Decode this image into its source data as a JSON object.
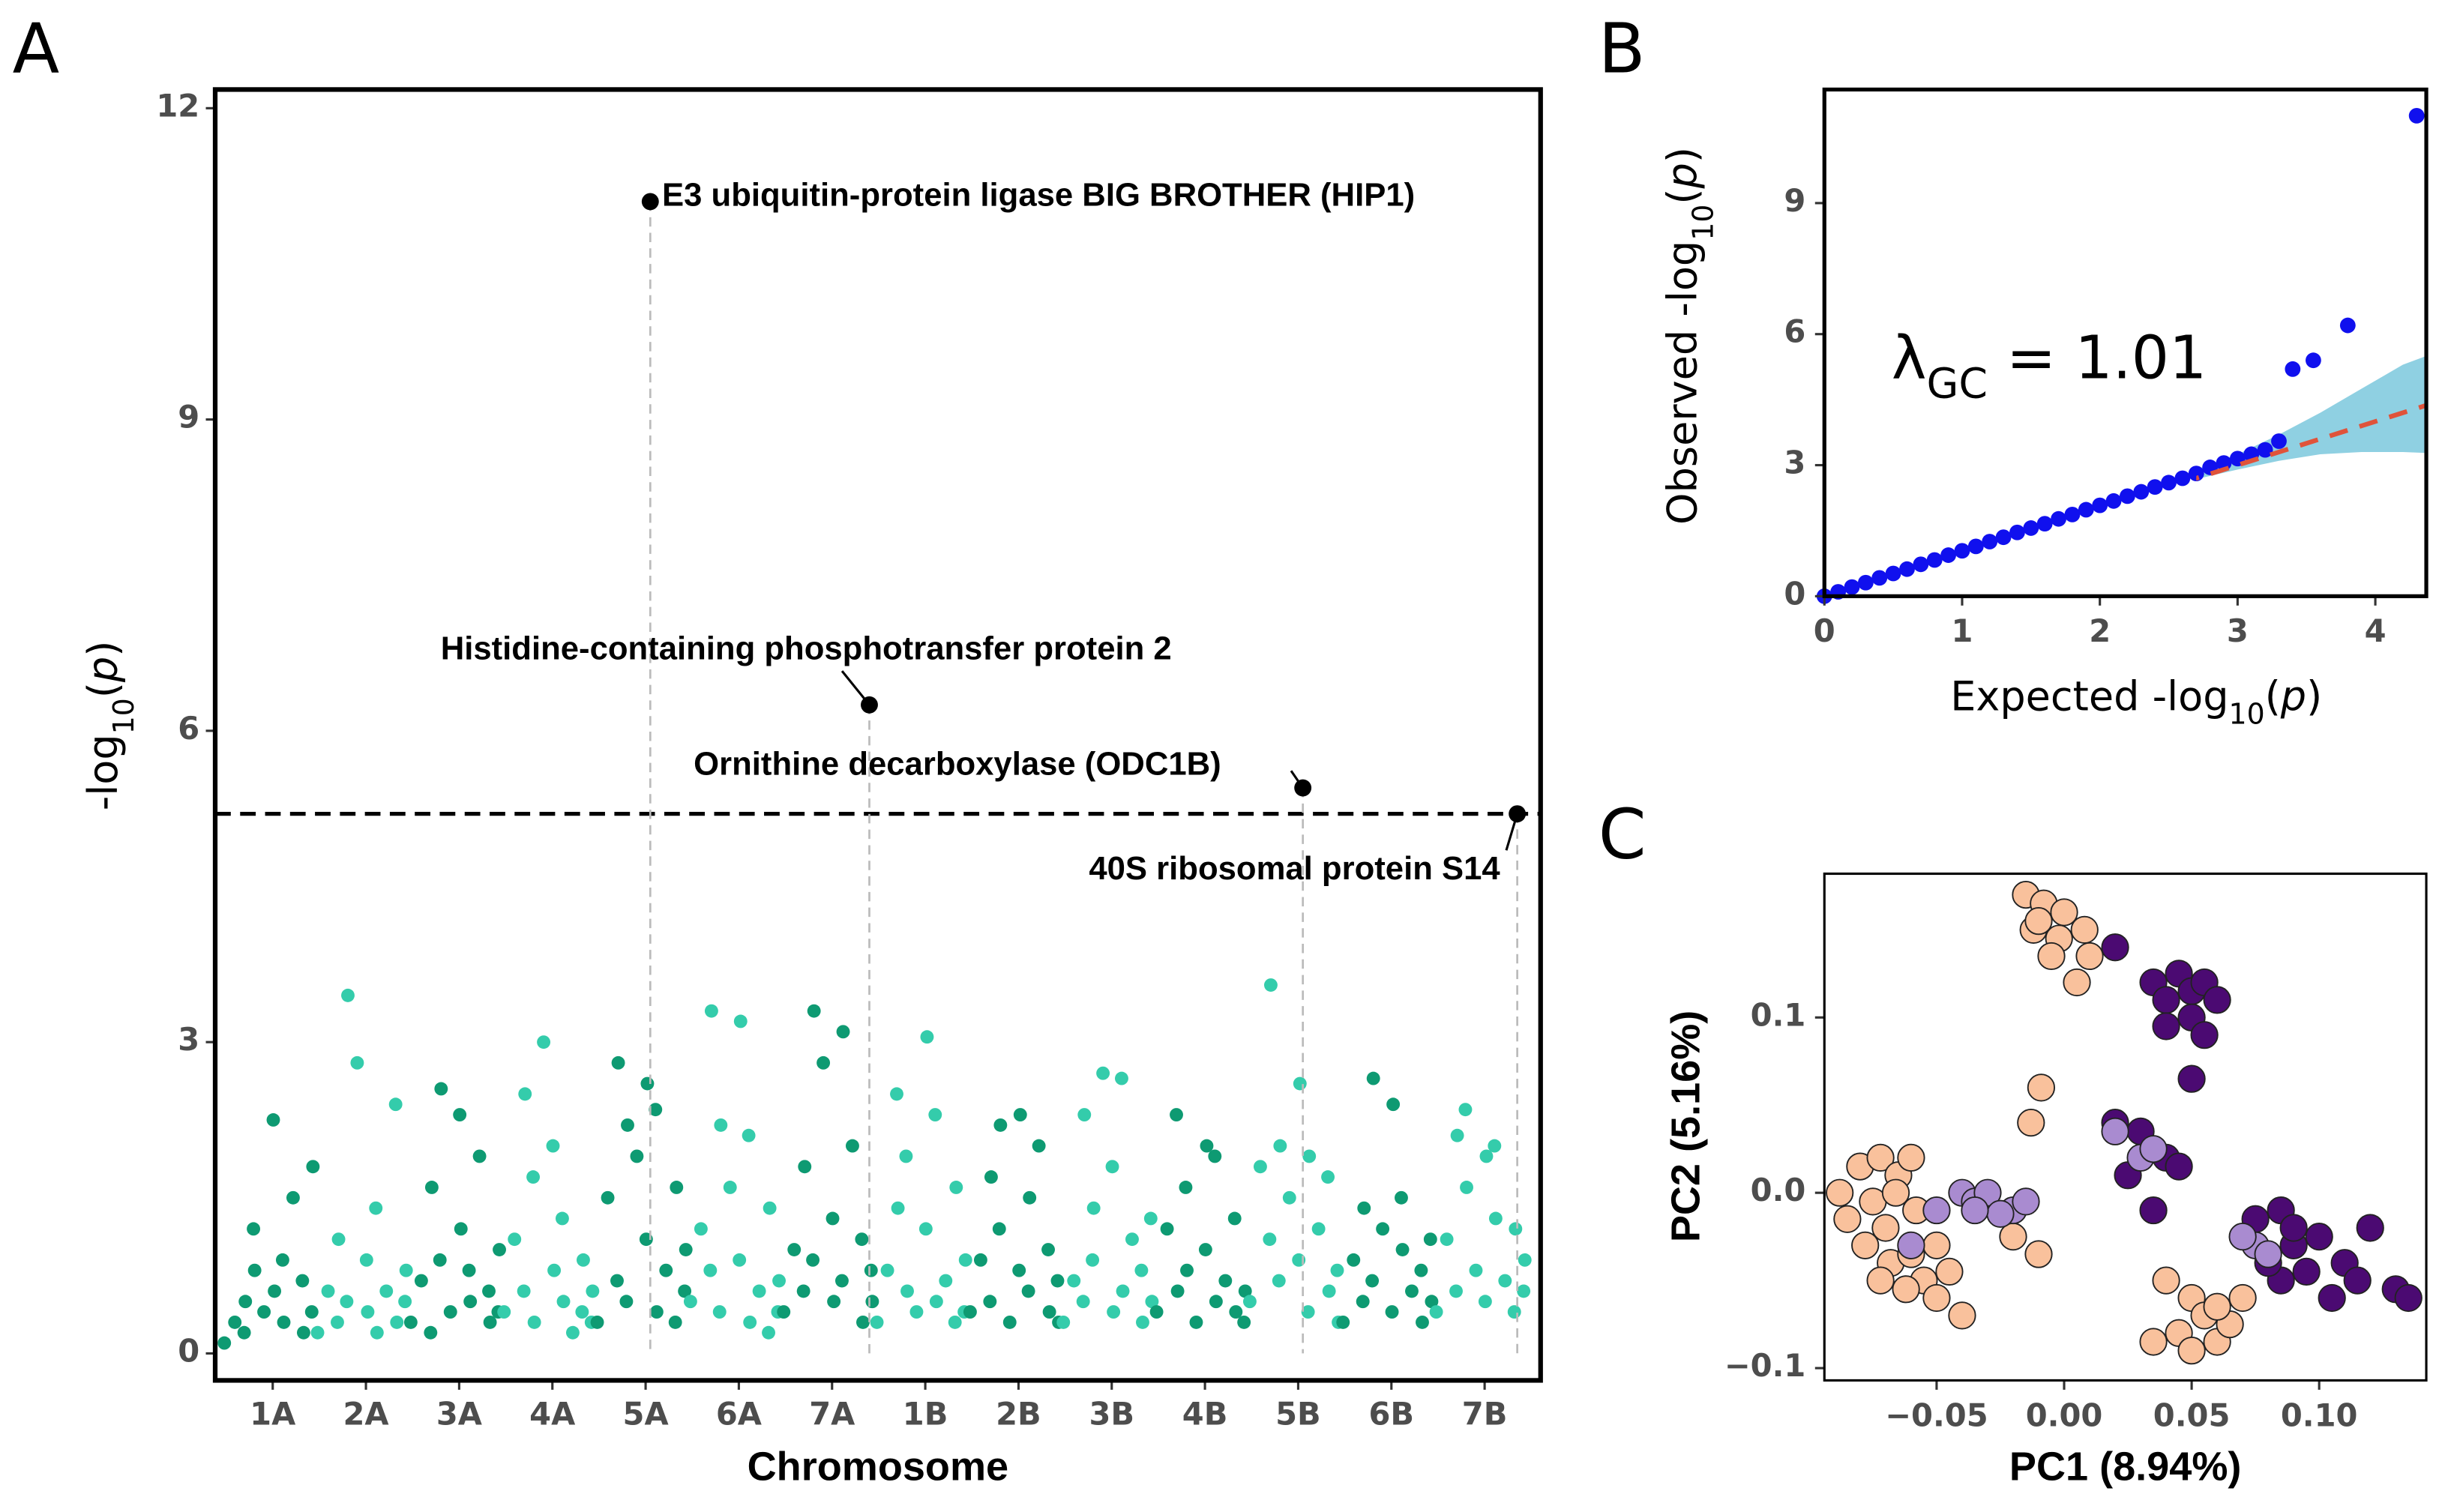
{
  "chart_data": [
    {
      "type": "manhattan",
      "panel": "A",
      "x_label": "Chromosome",
      "y_label": [
        {
          "t": "-log"
        },
        {
          "t": "10",
          "sub": true
        },
        {
          "t": "("
        },
        {
          "t": "p",
          "italic": true
        },
        {
          "t": ")"
        }
      ],
      "categories": [
        "1A",
        "2A",
        "3A",
        "4A",
        "5A",
        "6A",
        "7A",
        "1B",
        "2B",
        "3B",
        "4B",
        "5B",
        "6B",
        "7B"
      ],
      "colors": [
        "#0e9a72",
        "#34ccab"
      ],
      "points": [
        [
          0.1,
          0.3,
          0.5,
          0.2,
          0.8,
          1.2,
          0.4,
          0.6,
          2.25,
          0.3,
          0.9,
          1.5,
          0.2,
          0.7,
          1.8,
          0.4
        ],
        [
          0.2,
          0.6,
          1.1,
          0.3,
          3.45,
          0.5,
          2.8,
          0.4,
          0.9,
          0.2,
          1.4,
          0.6,
          0.3,
          2.4,
          0.8,
          0.5
        ],
        [
          0.3,
          0.7,
          1.6,
          0.2,
          2.55,
          0.9,
          0.4,
          1.2,
          2.3,
          0.5,
          0.8,
          1.9,
          0.3,
          0.6,
          1.0,
          0.4
        ],
        [
          0.4,
          1.1,
          2.5,
          0.6,
          0.3,
          1.7,
          3.0,
          0.8,
          2.0,
          0.5,
          1.3,
          0.2,
          0.9,
          0.4,
          0.6,
          0.3
        ],
        [
          0.3,
          1.5,
          2.8,
          0.7,
          2.2,
          0.5,
          1.9,
          2.6,
          1.1,
          0.4,
          2.35,
          0.8,
          1.6,
          0.3,
          1.0,
          0.6
        ],
        [
          0.5,
          1.2,
          3.3,
          0.8,
          2.2,
          0.4,
          1.6,
          3.2,
          0.9,
          0.3,
          2.1,
          0.6,
          1.4,
          0.2,
          0.7,
          0.4
        ],
        [
          0.4,
          1.0,
          1.8,
          0.6,
          3.3,
          0.9,
          2.8,
          0.5,
          1.3,
          3.1,
          0.7,
          2.0,
          0.3,
          1.1,
          0.5,
          0.8
        ],
        [
          0.3,
          0.8,
          1.4,
          2.5,
          0.6,
          1.9,
          0.4,
          3.05,
          1.2,
          0.5,
          2.3,
          0.7,
          1.6,
          0.3,
          0.9,
          0.4
        ],
        [
          0.4,
          0.9,
          1.7,
          0.5,
          2.2,
          1.2,
          0.3,
          2.3,
          0.8,
          1.5,
          0.6,
          2.0,
          0.4,
          1.0,
          0.3,
          0.7
        ],
        [
          0.3,
          0.7,
          2.3,
          0.5,
          1.4,
          0.9,
          2.7,
          0.4,
          1.8,
          0.6,
          2.65,
          1.1,
          0.3,
          0.8,
          0.5,
          1.3
        ],
        [
          0.4,
          1.2,
          0.6,
          2.3,
          0.8,
          1.6,
          0.3,
          2.0,
          1.0,
          0.5,
          1.9,
          0.7,
          0.4,
          1.3,
          0.6,
          0.3
        ],
        [
          0.5,
          1.8,
          3.55,
          1.1,
          2.0,
          0.7,
          1.5,
          2.6,
          0.9,
          1.9,
          0.4,
          1.2,
          0.6,
          1.7,
          0.3,
          0.8
        ],
        [
          0.3,
          0.9,
          1.4,
          0.5,
          2.65,
          0.7,
          1.2,
          2.4,
          0.4,
          1.0,
          1.5,
          0.6,
          0.3,
          0.8,
          0.5,
          1.1
        ],
        [
          0.4,
          1.1,
          2.1,
          0.6,
          1.6,
          2.35,
          0.8,
          1.9,
          0.5,
          1.3,
          2.0,
          0.7,
          1.2,
          0.4,
          0.9,
          0.6
        ]
      ],
      "highlights": [
        {
          "category": "5A",
          "value": 11.1,
          "label": "E3 ubiquitin-protein ligase BIG BROTHER (HIP1)"
        },
        {
          "category": "7A",
          "value": 6.25,
          "label": "Histidine-containing phosphotransfer protein 2"
        },
        {
          "category": "5B",
          "value": 5.45,
          "label": "Ornithine decarboxylase (ODC1B)"
        },
        {
          "category": "7B",
          "value": 5.2,
          "label": "40S ribosomal protein S14"
        }
      ],
      "threshold": 5.2,
      "ylim": [
        -0.26,
        12.18
      ],
      "yticks": [
        0,
        3,
        6,
        9,
        12
      ]
    },
    {
      "type": "qq",
      "panel": "B",
      "x_label": [
        {
          "t": "Expected  -log"
        },
        {
          "t": "10",
          "sub": true
        },
        {
          "t": "("
        },
        {
          "t": "p",
          "italic": true
        },
        {
          "t": ")"
        }
      ],
      "y_label": [
        {
          "t": "Observed  -log"
        },
        {
          "t": "10",
          "sub": true
        },
        {
          "t": "("
        },
        {
          "t": "p",
          "italic": true
        },
        {
          "t": ")"
        }
      ],
      "annotation": [
        {
          "t": "λ"
        },
        {
          "t": "GC",
          "sub": true
        },
        {
          "t": " = 1.01"
        }
      ],
      "color": "#1010ee",
      "band_color": "#8fd0e2",
      "reference_color": "#e0533a",
      "x": [
        0,
        0.1,
        0.2,
        0.3,
        0.4,
        0.5,
        0.6,
        0.7,
        0.8,
        0.9,
        1,
        1.1,
        1.2,
        1.3,
        1.4,
        1.5,
        1.6,
        1.7,
        1.8,
        1.9,
        2,
        2.1,
        2.2,
        2.3,
        2.4,
        2.5,
        2.6,
        2.7,
        2.8,
        2.9,
        3,
        3.1,
        3.2,
        3.3,
        3.4,
        3.55,
        3.8,
        4.3
      ],
      "values": [
        0,
        0.1,
        0.21,
        0.31,
        0.42,
        0.52,
        0.62,
        0.73,
        0.83,
        0.94,
        1.04,
        1.14,
        1.25,
        1.35,
        1.46,
        1.56,
        1.66,
        1.77,
        1.87,
        1.98,
        2.08,
        2.18,
        2.29,
        2.39,
        2.5,
        2.6,
        2.7,
        2.81,
        2.95,
        3.05,
        3.15,
        3.25,
        3.35,
        3.55,
        5.2,
        5.4,
        6.2,
        11.0
      ],
      "band": {
        "x": [
          2.7,
          3.0,
          3.3,
          3.6,
          3.9,
          4.2,
          4.37
        ],
        "lower": [
          2.68,
          2.9,
          3.1,
          3.25,
          3.3,
          3.3,
          3.28
        ],
        "upper": [
          2.9,
          3.25,
          3.7,
          4.2,
          4.75,
          5.3,
          5.5
        ]
      },
      "xlim": [
        0,
        4.37
      ],
      "ylim": [
        0,
        11.6
      ],
      "xticks": [
        0,
        1,
        2,
        3,
        4
      ],
      "yticks": [
        0,
        3,
        6,
        9
      ]
    },
    {
      "type": "scatter",
      "panel": "C",
      "x_label": "PC1 (8.94%)",
      "y_label": "PC2 (5.16%)",
      "series": [
        {
          "color": "#f9c19c",
          "x": [
            -0.015,
            -0.008,
            0.0,
            -0.012,
            -0.002,
            0.008,
            -0.005,
            0.01,
            0.005,
            -0.01,
            -0.088,
            -0.08,
            -0.072,
            -0.065,
            -0.06,
            -0.075,
            -0.07,
            -0.078,
            -0.068,
            -0.06,
            -0.055,
            -0.05,
            -0.062,
            -0.072,
            -0.045,
            -0.05,
            -0.085,
            -0.058,
            -0.04,
            -0.066,
            -0.01,
            -0.02,
            -0.009,
            -0.013,
            0.04,
            0.05,
            0.055,
            0.045,
            0.06,
            0.065,
            0.05,
            0.035,
            0.06,
            0.07
          ],
          "values": [
            0.17,
            0.165,
            0.16,
            0.15,
            0.145,
            0.15,
            0.135,
            0.135,
            0.12,
            0.155,
            0.0,
            0.015,
            0.02,
            0.01,
            0.02,
            -0.005,
            -0.02,
            -0.03,
            -0.04,
            -0.035,
            -0.05,
            -0.06,
            -0.055,
            -0.05,
            -0.045,
            -0.03,
            -0.015,
            -0.01,
            -0.07,
            0.0,
            -0.035,
            -0.025,
            0.06,
            0.04,
            -0.05,
            -0.06,
            -0.07,
            -0.08,
            -0.085,
            -0.075,
            -0.09,
            -0.085,
            -0.065,
            -0.06
          ]
        },
        {
          "color": "#4b0a72",
          "x": [
            0.02,
            0.035,
            0.045,
            0.05,
            0.055,
            0.04,
            0.05,
            0.055,
            0.04,
            0.06,
            0.05,
            0.02,
            0.03,
            0.04,
            0.045,
            0.025,
            0.035,
            0.075,
            0.085,
            0.09,
            0.1,
            0.095,
            0.085,
            0.11,
            0.115,
            0.12,
            0.13,
            0.135,
            0.08,
            0.105,
            0.09
          ],
          "values": [
            0.14,
            0.12,
            0.125,
            0.115,
            0.12,
            0.11,
            0.1,
            0.09,
            0.095,
            0.11,
            0.065,
            0.04,
            0.035,
            0.02,
            0.015,
            0.01,
            -0.01,
            -0.015,
            -0.01,
            -0.03,
            -0.025,
            -0.045,
            -0.05,
            -0.04,
            -0.05,
            -0.02,
            -0.055,
            -0.06,
            -0.04,
            -0.06,
            -0.02
          ]
        },
        {
          "color": "#a98bd0",
          "x": [
            -0.06,
            -0.05,
            -0.04,
            -0.035,
            -0.03,
            -0.02,
            -0.015,
            -0.025,
            -0.035,
            0.02,
            0.03,
            0.035,
            0.075,
            0.08,
            0.07
          ],
          "values": [
            -0.03,
            -0.01,
            0.0,
            -0.005,
            0.0,
            -0.01,
            -0.005,
            -0.012,
            -0.01,
            0.035,
            0.02,
            0.025,
            -0.03,
            -0.035,
            -0.025
          ]
        }
      ],
      "xlim": [
        -0.094,
        0.142
      ],
      "ylim": [
        -0.107,
        0.182
      ],
      "xticks": [
        {
          "value": -0.05,
          "label": "−0.05"
        },
        {
          "value": 0,
          "label": "0.00"
        },
        {
          "value": 0.05,
          "label": "0.05"
        },
        {
          "value": 0.1,
          "label": "0.10"
        }
      ],
      "yticks": [
        {
          "value": -0.1,
          "label": "−0.1"
        },
        {
          "value": 0,
          "label": "0.0"
        },
        {
          "value": 0.1,
          "label": "0.1"
        }
      ]
    }
  ]
}
